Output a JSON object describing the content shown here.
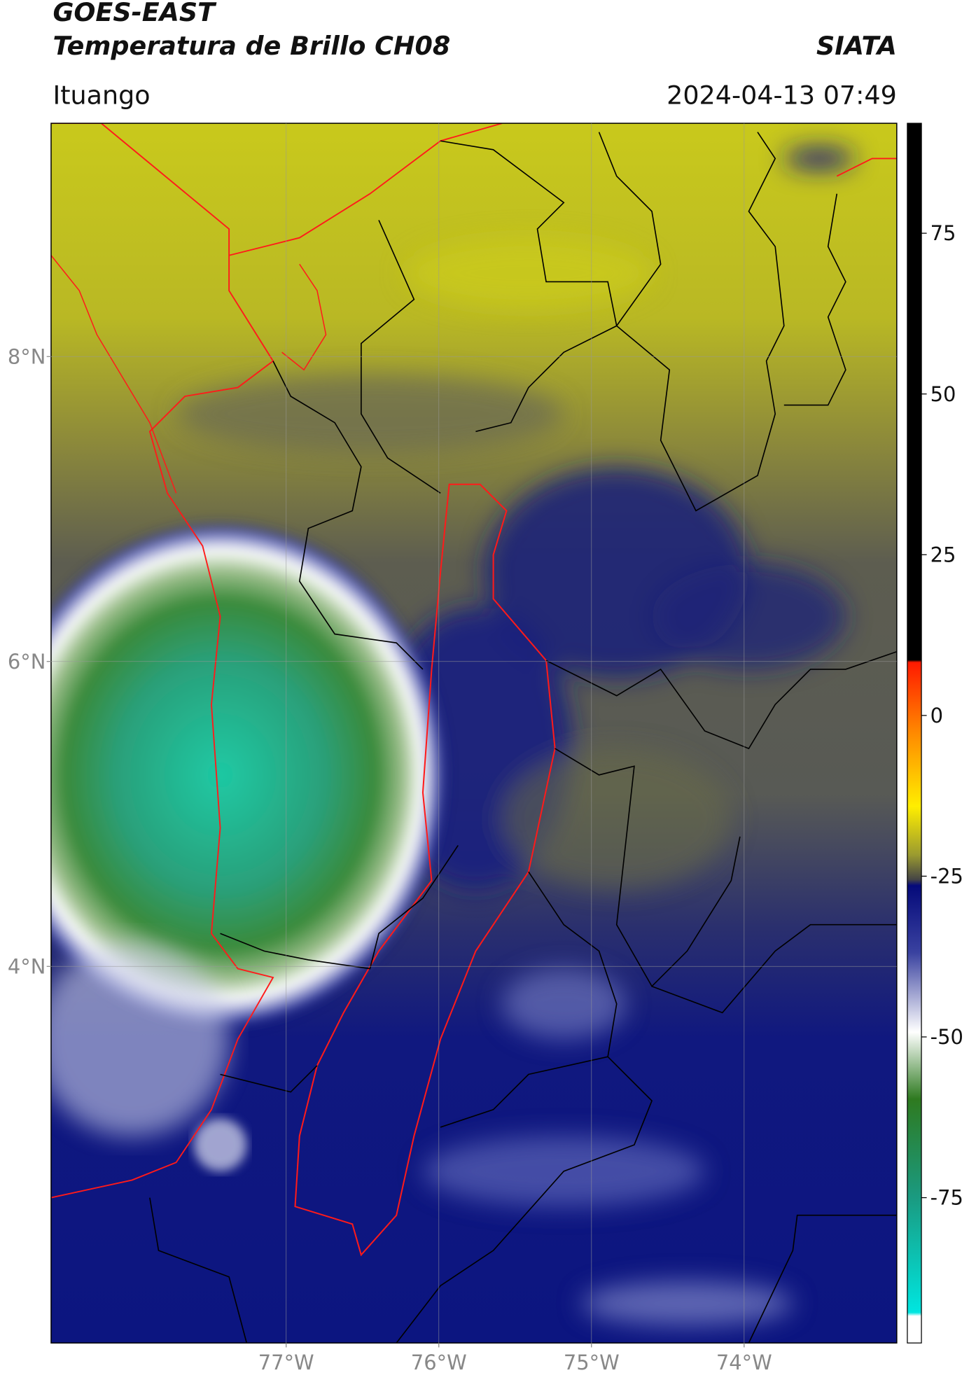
{
  "header": {
    "title": "GOES-EAST",
    "subtitle": "Temperatura de Brillo CH08",
    "source": "SIATA",
    "region": "Ituango",
    "timestamp": "2024-04-13 07:49"
  },
  "map": {
    "latlim": [
      1.53,
      9.53
    ],
    "lonlim": [
      -78.54,
      -73.0
    ],
    "latticks": [
      {
        "value": 8,
        "label": "8°N"
      },
      {
        "value": 6,
        "label": "6°N"
      },
      {
        "value": 4,
        "label": "4°N"
      }
    ],
    "lonticks": [
      {
        "value": -77,
        "label": "77°W"
      },
      {
        "value": -76,
        "label": "76°W"
      },
      {
        "value": -75,
        "label": "75°W"
      },
      {
        "value": -74,
        "label": "74°W"
      }
    ],
    "grid": true
  },
  "colorbar": {
    "lim": [
      -97.6,
      92.1
    ],
    "ticks": [
      75,
      50,
      25,
      0,
      -25,
      -50,
      -75
    ]
  }
}
